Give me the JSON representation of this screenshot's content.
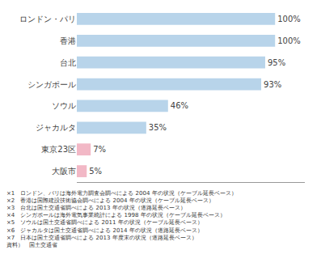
{
  "chart_data": {
    "type": "bar",
    "orientation": "horizontal",
    "categories": [
      "ロンドン・パリ",
      "香港",
      "台北",
      "シンガポール",
      "ソウル",
      "ジャカルタ",
      "東京23区",
      "大阪市"
    ],
    "values": [
      100,
      100,
      95,
      93,
      46,
      35,
      7,
      5
    ],
    "value_labels": [
      "100%",
      "100%",
      "95%",
      "93%",
      "46%",
      "35%",
      "7%",
      "5%"
    ],
    "data_labels": true,
    "colors": [
      "#b8d4ea",
      "#b8d4ea",
      "#b8d4ea",
      "#b8d4ea",
      "#b8d4ea",
      "#b8d4ea",
      "#f2b8c6",
      "#f2b8c6"
    ],
    "xlim": [
      0,
      115
    ],
    "tick_labels": "y",
    "grid": false,
    "annotations": [
      "×1　ロンドン、パリは海外電力調査会調べによる 2004 年の状況（ケーブル延長ベース）",
      "×2　香港は国際建設技術協会調べによる 2004 年の状況（ケーブル延長ベース）",
      "×3　台北は国土交通省調べによる 2013 年の状況（道路延長ベース）",
      "×4　シンガポールは海外電気事業統計による 1998 年の状況（ケーブル延長ベース）",
      "×5　ソウルは国土交通省調べによる 2011 年の状況（ケーブル延長ベース）",
      "×6　ジャカルタは国土交通省調べによる 2014 年の状況（道路延長ベース）",
      "×7　日本は国土交通省調べによる 2013 年度末の状況（道路延長ベース）",
      "資料）　国土交通省"
    ]
  }
}
